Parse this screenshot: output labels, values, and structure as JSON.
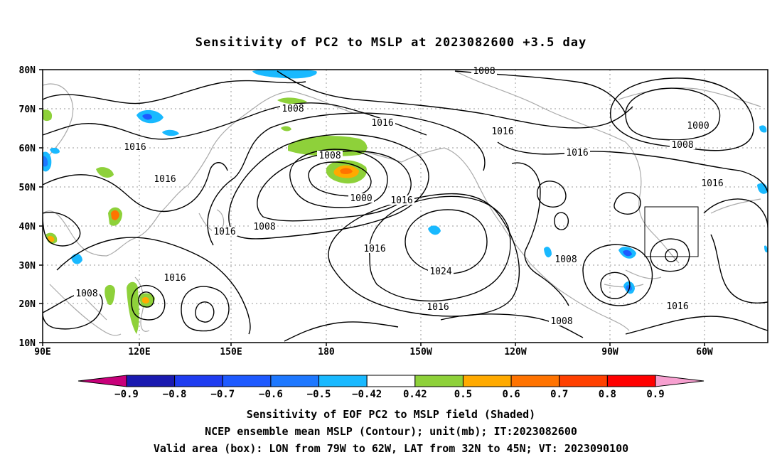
{
  "title": "Sensitivity of PC2 to MSLP at 2023082600 +3.5 day",
  "axes": {
    "lat_labels": [
      "80N",
      "70N",
      "60N",
      "50N",
      "40N",
      "30N",
      "20N",
      "10N"
    ],
    "lon_labels": [
      "90E",
      "120E",
      "150E",
      "180",
      "150W",
      "120W",
      "90W",
      "60W"
    ]
  },
  "contour_labels": [
    "1008",
    "1008",
    "1016",
    "1016",
    "1000",
    "1008",
    "1016",
    "1016",
    "1008",
    "1000",
    "1016",
    "1016",
    "1016",
    "1008",
    "1016",
    "1024",
    "1016",
    "1008",
    "1016",
    "1016",
    "1008",
    "1016",
    "1008"
  ],
  "colorbar": {
    "ticks": [
      "−0.9",
      "−0.8",
      "−0.7",
      "−0.6",
      "−0.5",
      "−0.42",
      "0.42",
      "0.5",
      "0.6",
      "0.7",
      "0.8",
      "0.9"
    ],
    "colors": [
      "#c8007a",
      "#1a1ab0",
      "#1f3cf0",
      "#1e5aff",
      "#1e78ff",
      "#19b9ff",
      "#ffffff",
      "#8ed13a",
      "#ffaa00",
      "#ff7300",
      "#ff4000",
      "#ff0000",
      "#f7a0d0"
    ]
  },
  "captions": [
    "Sensitivity of EOF PC2 to MSLP field (Shaded)",
    "NCEP ensemble mean MSLP (Contour); unit(mb); IT:2023082600",
    "Valid area (box): LON from 79W to 62W, LAT from 32N to 45N; VT: 2023090100"
  ]
}
